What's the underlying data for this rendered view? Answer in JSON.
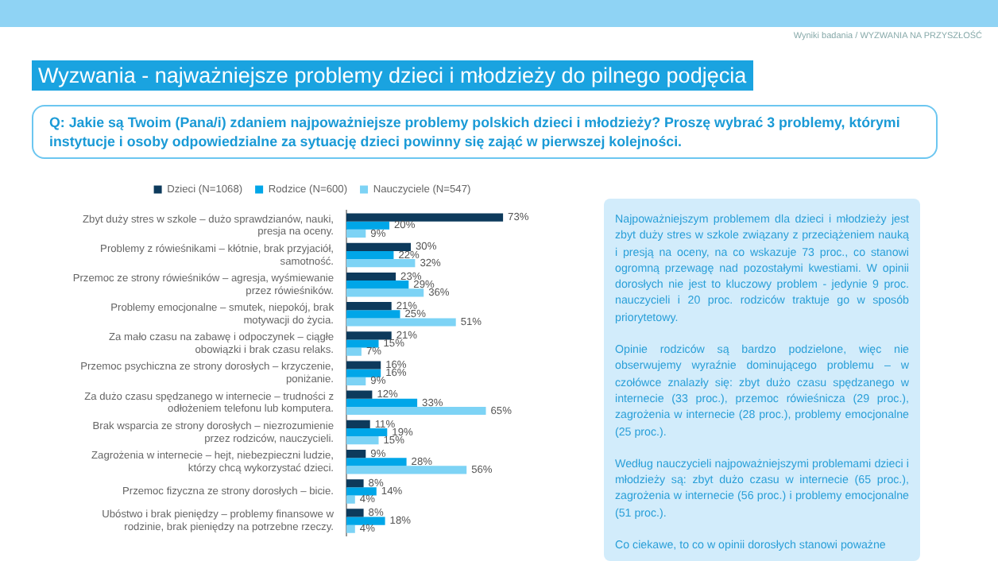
{
  "chart_data": {
    "type": "bar",
    "orientation": "horizontal",
    "title": "Wyzwania - najważniejsze problemy dzieci i młodzieży do pilnego podjęcia",
    "subtitle": "Q: Jakie są Twoim (Pana/i) zdaniem najpoważniejsze problemy polskich dzieci i młodzieży? Proszę wybrać 3 problemy, którymi instytucje i osoby odpowiedzialne za sytuację dzieci powinny się zająć w pierwszej kolejności.",
    "categories": [
      "Zbyt duży stres w szkole – dużo sprawdzianów, nauki, presja na oceny.",
      "Problemy z rówieśnikami – kłótnie, brak przyjaciół, samotność.",
      "Przemoc ze strony rówieśników – agresja, wyśmiewanie przez rówieśników.",
      "Problemy emocjonalne – smutek, niepokój, brak motywacji do życia.",
      "Za mało czasu na zabawę i odpoczynek – ciągłe obowiązki i brak czasu relaks.",
      "Przemoc psychiczna ze strony dorosłych – krzyczenie, poniżanie.",
      "Za dużo czasu spędzanego w internecie – trudności z odłożeniem telefonu lub komputera.",
      "Brak wsparcia ze strony dorosłych – niezrozumienie przez rodziców, nauczycieli.",
      "Zagrożenia w internecie – hejt, niebezpieczni ludzie, którzy chcą wykorzystać dzieci.",
      "Przemoc fizyczna ze strony dorosłych – bicie.",
      "Ubóstwo i brak pieniędzy – problemy finansowe w rodzinie, brak pieniędzy na potrzebne rzeczy."
    ],
    "series": [
      {
        "name": "Dzieci (N=1068)",
        "color": "#0d3a5c",
        "values": [
          73,
          30,
          23,
          21,
          21,
          16,
          12,
          11,
          9,
          8,
          8
        ],
        "value_labels": [
          "73%",
          "30%",
          "23%",
          "21%",
          "21%",
          "16%",
          "12%",
          "11%",
          "9%",
          "8%",
          "8%"
        ]
      },
      {
        "name": "Rodzice (N=600)",
        "color": "#00a6e8",
        "values": [
          20,
          22,
          29,
          25,
          15,
          16,
          33,
          19,
          28,
          14,
          18
        ],
        "value_labels": [
          "20%",
          "22%",
          "29%",
          "25%",
          "15%",
          "16%",
          "33%",
          "19%",
          "28%",
          "14%",
          "18%"
        ]
      },
      {
        "name": "Nauczyciele (N=547)",
        "color": "#7dd3f5",
        "values": [
          9,
          32,
          36,
          51,
          7,
          9,
          65,
          15,
          56,
          4,
          4
        ],
        "value_labels": [
          "9%",
          "32%",
          "36%",
          "51%",
          "7%",
          "9%",
          "65%",
          "15%",
          "56%",
          "4%",
          "4%"
        ]
      }
    ],
    "tick_labels": "y",
    "legend": "top",
    "annotations": [
      "Wyniki badania / WYZWANIA NA PRZYSZŁOŚĆ",
      "Najpoważniejszym problemem dla dzieci i młodzieży jest zbyt duży stres w szkole związany z przeciążeniem nauką i presją na oceny, na co wskazuje 73 proc., co stanowi ogromną przewagę nad pozostałymi kwestiami. W opinii dorosłych nie jest to kluczowy problem - jedynie 9 proc. nauczycieli i 20 proc. rodziców traktuje go w sposób priorytetowy.",
      "Opinie rodziców są bardzo podzielone, więc nie obserwujemy wyraźnie dominującego problemu – w czołówce znalazły się: zbyt dużo czasu spędzanego w internecie (33 proc.), przemoc rówieśnicza (29 proc.), zagrożenia w internecie (28 proc.), problemy emocjonalne (25 proc.).",
      "Według nauczycieli najpoważniejszymi problemami dzieci i młodzieży są: zbyt dużo czasu w internecie (65 proc.), zagrożenia w internecie (56 proc.) i problemy emocjonalne (51 proc.).",
      "Co ciekawe, to co w opinii dorosłych stanowi poważne"
    ]
  }
}
